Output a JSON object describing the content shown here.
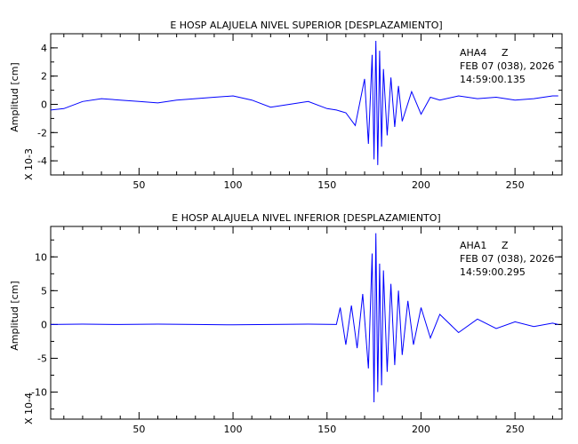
{
  "chart_data": [
    {
      "type": "line",
      "title": "E HOSP ALAJUELA NIVEL SUPERIOR [DESPLAZAMIENTO]",
      "ylabel": "Amplitud [cm]",
      "yscale_label": "X 10-3",
      "station": "AHA4",
      "component": "Z",
      "date": "FEB 07 (038), 2026",
      "time": "14:59:00.135",
      "xlim": [
        3,
        275
      ],
      "ylim": [
        -5,
        5
      ],
      "xticks": [
        50,
        100,
        150,
        200,
        250
      ],
      "yticks": [
        -4,
        -2,
        0,
        2,
        4
      ],
      "line_color": "#0000ff",
      "series": [
        {
          "x": [
            3,
            10,
            20,
            30,
            40,
            50,
            60,
            70,
            80,
            90,
            100,
            110,
            120,
            130,
            140,
            150,
            155,
            160,
            165,
            170,
            172,
            174,
            175,
            176,
            177,
            178,
            179,
            180,
            182,
            184,
            186,
            188,
            190,
            195,
            200,
            205,
            210,
            220,
            230,
            240,
            250,
            260,
            270,
            273
          ],
          "values": [
            -0.4,
            -0.3,
            0.2,
            0.4,
            0.3,
            0.2,
            0.1,
            0.3,
            0.4,
            0.5,
            0.6,
            0.3,
            -0.2,
            0.0,
            0.2,
            -0.3,
            -0.4,
            -0.6,
            -1.5,
            1.8,
            -2.8,
            3.5,
            -3.9,
            4.5,
            -4.3,
            3.8,
            -3.0,
            2.5,
            -2.2,
            1.9,
            -1.6,
            1.3,
            -1.2,
            0.9,
            -0.7,
            0.5,
            0.3,
            0.6,
            0.4,
            0.5,
            0.3,
            0.4,
            0.6,
            0.6
          ]
        }
      ]
    },
    {
      "type": "line",
      "title": "E HOSP ALAJUELA NIVEL INFERIOR [DESPLAZAMIENTO]",
      "ylabel": "Amplitud [cm]",
      "yscale_label": "X 10-4",
      "station": "AHA1",
      "component": "Z",
      "date": "FEB 07 (038), 2026",
      "time": "14:59:00.295",
      "xlim": [
        3,
        275
      ],
      "ylim": [
        -14,
        14.5
      ],
      "xticks": [
        50,
        100,
        150,
        200,
        250
      ],
      "yticks": [
        -10,
        -5,
        0,
        5,
        10
      ],
      "line_color": "#0000ff",
      "series": [
        {
          "x": [
            3,
            20,
            40,
            60,
            80,
            100,
            120,
            140,
            155,
            157,
            160,
            163,
            166,
            169,
            172,
            174,
            175,
            176,
            177,
            178,
            179,
            180,
            182,
            184,
            186,
            188,
            190,
            193,
            196,
            200,
            205,
            210,
            220,
            230,
            240,
            250,
            260,
            270,
            273
          ],
          "values": [
            0.0,
            0.05,
            0.0,
            0.05,
            0.0,
            -0.05,
            0.0,
            0.05,
            0.0,
            2.5,
            -3.0,
            2.8,
            -3.5,
            4.5,
            -6.5,
            10.5,
            -11.5,
            13.5,
            -10.0,
            9.0,
            -9.0,
            8.0,
            -7.0,
            6.0,
            -6.0,
            5.0,
            -4.5,
            3.5,
            -3.0,
            2.5,
            -2.0,
            1.5,
            -1.2,
            0.8,
            -0.6,
            0.4,
            -0.3,
            0.2,
            0.0
          ]
        }
      ]
    }
  ]
}
